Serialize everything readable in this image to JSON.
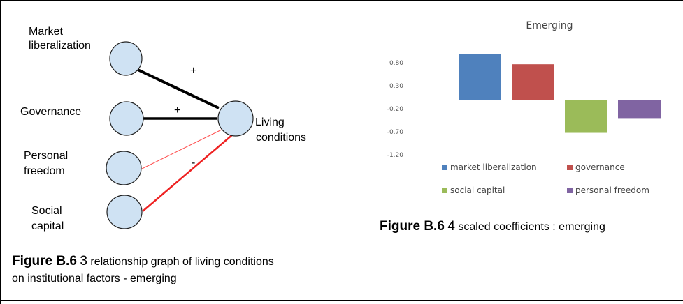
{
  "diagram": {
    "nodes": [
      {
        "id": "market",
        "label_lines": [
          "Market",
          "liberalization"
        ]
      },
      {
        "id": "governance",
        "label_lines": [
          "Governance"
        ]
      },
      {
        "id": "freedom",
        "label_lines": [
          "Personal",
          "freedom"
        ]
      },
      {
        "id": "social",
        "label_lines": [
          "Social",
          "capital"
        ]
      },
      {
        "id": "living",
        "label_lines": [
          "Living",
          "conditions"
        ]
      }
    ],
    "edges": [
      {
        "from": "market",
        "to": "living",
        "sign": "+",
        "color": "#000000",
        "weight": "thick"
      },
      {
        "from": "governance",
        "to": "living",
        "sign": "+",
        "color": "#000000",
        "weight": "thick"
      },
      {
        "from": "freedom",
        "to": "living",
        "sign": "",
        "color": "#ff4d4d",
        "weight": "thin"
      },
      {
        "from": "social",
        "to": "living",
        "sign": "-",
        "color": "#ee2222",
        "weight": "medium"
      }
    ],
    "node_fill": "#cfe2f3"
  },
  "left_caption": {
    "bold": "Figure B.6",
    "num": "3",
    "line1": "relationship graph of living conditions",
    "line2": "on institutional factors - emerging"
  },
  "chart_data": {
    "type": "bar",
    "title": "Emerging",
    "categories": [
      "market liberalization",
      "governance",
      "social capital",
      "personal freedom"
    ],
    "values": [
      1.0,
      0.77,
      -0.72,
      -0.4
    ],
    "colors": [
      "#4f81bd",
      "#c0504d",
      "#9bbb59",
      "#8064a2"
    ],
    "y_ticks": [
      "0.80",
      "0.30",
      "-0.20",
      "-0.70",
      "-1.20"
    ],
    "ylim": [
      -1.2,
      0.8
    ],
    "legend_position": "bottom",
    "grid": false
  },
  "right_caption": {
    "bold": "Figure B.6",
    "num": "4",
    "text": "scaled coefficients : emerging"
  }
}
